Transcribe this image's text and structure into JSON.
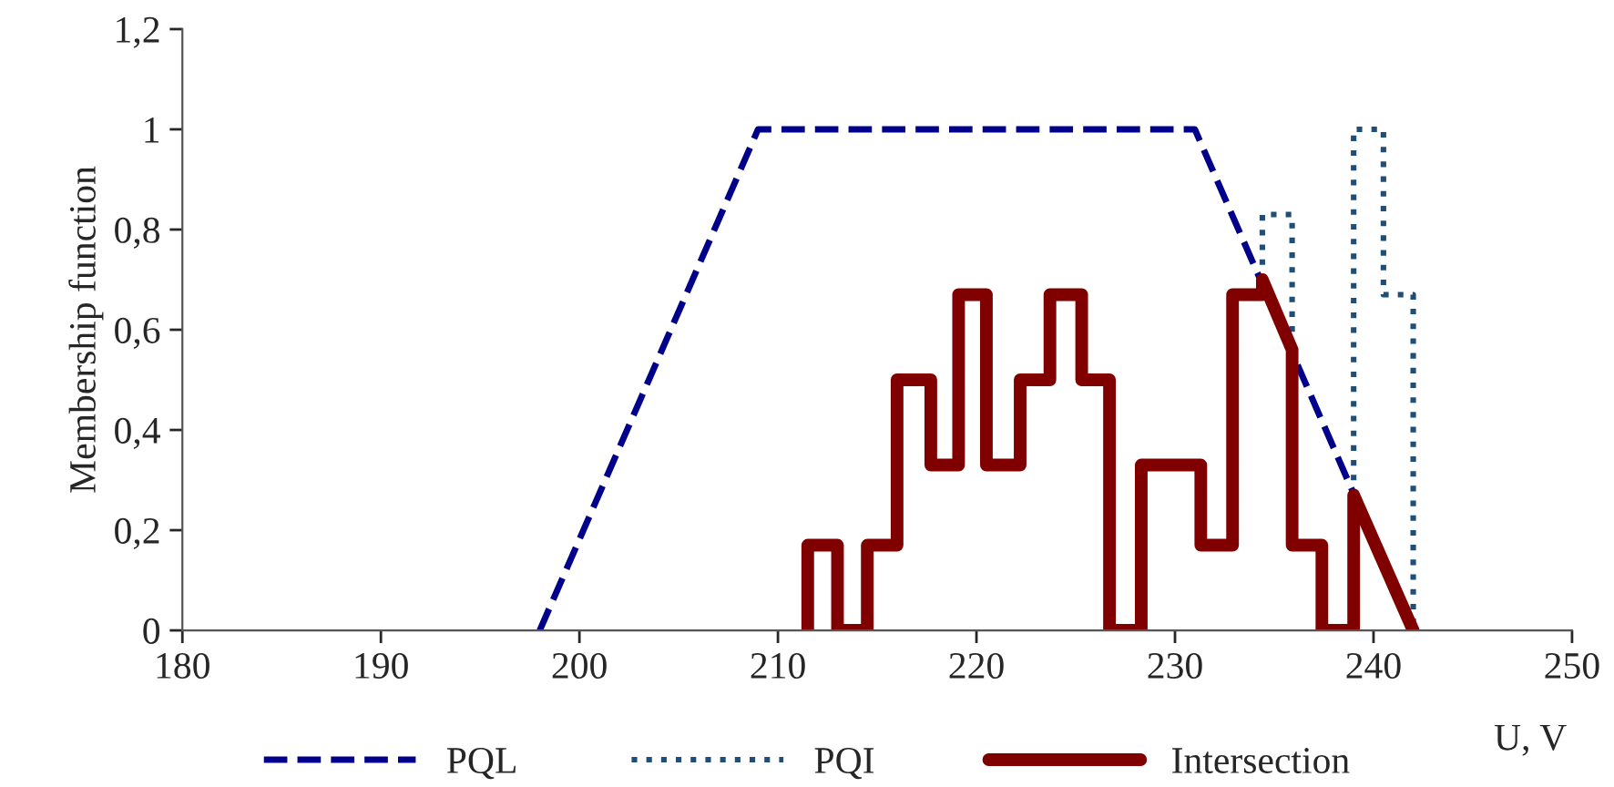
{
  "chart_data": {
    "type": "line",
    "ylabel": "Membership function",
    "xlabel": "U, V",
    "xlim": [
      180,
      250
    ],
    "xticks": [
      180,
      190,
      200,
      210,
      220,
      230,
      240,
      250
    ],
    "ylim": [
      0,
      1.2
    ],
    "yticks": [
      0,
      {
        "value": 0.2,
        "label": "0,2"
      },
      {
        "value": 0.4,
        "label": "0,4"
      },
      {
        "value": 0.6,
        "label": "0,6"
      },
      {
        "value": 0.8,
        "label": "0,8"
      },
      1,
      {
        "value": 1.2,
        "label": "1,2"
      }
    ],
    "grid": false,
    "legend": "bottom",
    "marker": "none",
    "series": [
      {
        "name": "PQL",
        "color": "#00008b",
        "line_style": "dashed",
        "x": [
          198,
          209,
          231,
          242
        ],
        "values": [
          0,
          1,
          1,
          0
        ]
      },
      {
        "name": "PQI",
        "color": "#1f4e79",
        "line_style": "dotted",
        "x": [
          234.4,
          234.4,
          235.9,
          235.9,
          237.0,
          239.0,
          239.0,
          240.5,
          240.5,
          242.0,
          242.0
        ],
        "values": [
          0.7,
          0.83,
          0.83,
          0.56,
          null,
          0.27,
          1.0,
          1.0,
          0.67,
          0.67,
          0
        ]
      },
      {
        "name": "Intersection",
        "color": "#800000",
        "line_style": "solid",
        "x": [
          211.5,
          211.5,
          213.0,
          213.0,
          214.5,
          214.5,
          216.0,
          216.0,
          217.7,
          217.7,
          219.1,
          219.1,
          220.5,
          220.5,
          222.2,
          222.2,
          223.7,
          223.7,
          225.3,
          225.3,
          226.7,
          226.7,
          228.3,
          228.3,
          231.3,
          231.3,
          232.9,
          232.9,
          234.4,
          234.4,
          235.9,
          235.9,
          237.4,
          237.4,
          239.0,
          239.0,
          242.0
        ],
        "values": [
          0,
          0.17,
          0.17,
          0,
          0,
          0.17,
          0.17,
          0.5,
          0.5,
          0.33,
          0.33,
          0.67,
          0.67,
          0.33,
          0.33,
          0.5,
          0.5,
          0.67,
          0.67,
          0.5,
          0.5,
          0,
          0,
          0.33,
          0.33,
          0.17,
          0.17,
          0.67,
          0.67,
          0.7,
          0.56,
          0.17,
          0.17,
          0,
          0,
          0.27,
          0
        ]
      }
    ]
  }
}
